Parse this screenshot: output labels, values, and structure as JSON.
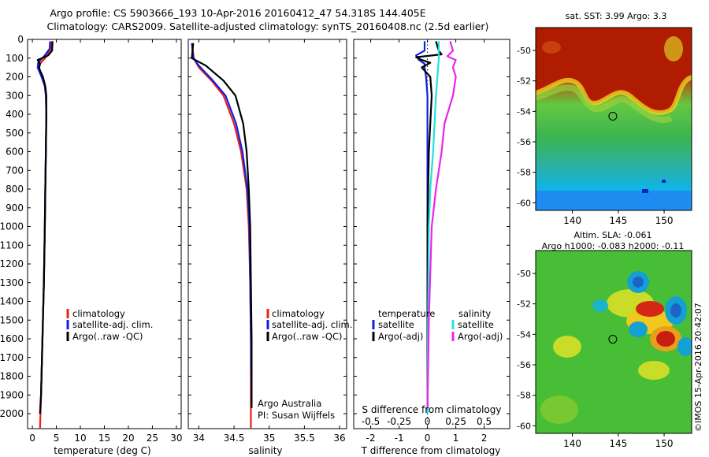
{
  "header": {
    "title_line1": "Argo profile: CS 5903666_193 10-Apr-2016 20160412_47 54.318S 144.405E",
    "title_line2": "Climatology: CARS2009. Satellite-adjusted climatology: synTS_20160408.nc (2.5d earlier)"
  },
  "colors": {
    "climatology": "#e8201e",
    "satellite_adj": "#1020e0",
    "argo": "#000000",
    "salinity_satellite": "#22e0e0",
    "salinity_argo": "#ee22ee"
  },
  "chart_data": [
    {
      "type": "line",
      "id": "temperature",
      "xlabel": "temperature (deg C)",
      "xlim": [
        -1,
        31
      ],
      "ylim": [
        2080,
        0
      ],
      "xticks": [
        0,
        5,
        10,
        15,
        20,
        25,
        30
      ],
      "xtick_labels": [
        "0",
        "5",
        "10",
        "15",
        "20",
        "25",
        "30"
      ],
      "yticks": [
        0,
        100,
        200,
        300,
        400,
        500,
        600,
        700,
        800,
        900,
        1000,
        1100,
        1200,
        1300,
        1400,
        1500,
        1600,
        1700,
        1800,
        1900,
        2000
      ],
      "ytick_labels": [
        "0",
        "100",
        "200",
        "300",
        "400",
        "500",
        "600",
        "700",
        "800",
        "900",
        "1000",
        "1100",
        "1200",
        "1300",
        "1400",
        "1500",
        "1600",
        "1700",
        "1800",
        "1900",
        "2000"
      ],
      "legend": [
        "climatology",
        "satellite-adj. clim.",
        "Argo(..raw -QC)"
      ],
      "legend_location": "lower-center",
      "series": [
        {
          "name": "climatology",
          "color_key": "climatology",
          "points": [
            [
              3.9,
              10
            ],
            [
              3.8,
              50
            ],
            [
              3.0,
              90
            ],
            [
              1.6,
              130
            ],
            [
              1.4,
              150
            ],
            [
              2.0,
              200
            ],
            [
              2.6,
              250
            ],
            [
              2.8,
              300
            ],
            [
              2.9,
              400
            ],
            [
              2.8,
              600
            ],
            [
              2.7,
              800
            ],
            [
              2.6,
              1000
            ],
            [
              2.4,
              1300
            ],
            [
              2.1,
              1600
            ],
            [
              1.8,
              1900
            ],
            [
              1.6,
              2080
            ]
          ]
        },
        {
          "name": "satellite-adj. clim.",
          "color_key": "satellite_adj",
          "points": [
            [
              3.7,
              10
            ],
            [
              3.6,
              50
            ],
            [
              2.6,
              85
            ],
            [
              1.2,
              125
            ],
            [
              1.1,
              150
            ],
            [
              1.9,
              200
            ],
            [
              2.6,
              250
            ],
            [
              2.8,
              300
            ],
            [
              2.9,
              400
            ],
            [
              2.8,
              600
            ],
            [
              2.7,
              800
            ],
            [
              2.6,
              1000
            ],
            [
              2.4,
              1300
            ],
            [
              2.1,
              1600
            ],
            [
              1.8,
              1900
            ],
            [
              1.6,
              2000
            ]
          ]
        },
        {
          "name": "Argo(..raw -QC)",
          "color_key": "argo",
          "points": [
            [
              4.2,
              10
            ],
            [
              4.1,
              60
            ],
            [
              3.3,
              85
            ],
            [
              1.1,
              110
            ],
            [
              1.6,
              130
            ],
            [
              1.4,
              155
            ],
            [
              2.2,
              200
            ],
            [
              2.7,
              250
            ],
            [
              2.9,
              300
            ],
            [
              2.9,
              400
            ],
            [
              2.8,
              600
            ],
            [
              2.7,
              800
            ],
            [
              2.6,
              1000
            ],
            [
              2.4,
              1300
            ],
            [
              2.1,
              1600
            ],
            [
              1.8,
              1900
            ],
            [
              1.6,
              2000
            ]
          ]
        }
      ]
    },
    {
      "type": "line",
      "id": "salinity",
      "xlabel": "salinity",
      "xlim": [
        33.85,
        36.1
      ],
      "ylim": [
        2080,
        0
      ],
      "xticks": [
        34,
        34.5,
        35,
        35.5,
        36
      ],
      "xtick_labels": [
        "34",
        "34.5",
        "35",
        "35.5",
        "36"
      ],
      "legend": [
        "climatology",
        "satellite-adj. clim.",
        "Argo(..raw -QC)"
      ],
      "legend_location": "lower-center",
      "annotations": [
        "Argo Australia",
        "PI: Susan Wijffels"
      ],
      "series": [
        {
          "name": "climatology",
          "color_key": "climatology",
          "points": [
            [
              33.9,
              20
            ],
            [
              33.93,
              100
            ],
            [
              34.0,
              150
            ],
            [
              34.18,
              220
            ],
            [
              34.35,
              300
            ],
            [
              34.5,
              450
            ],
            [
              34.6,
              600
            ],
            [
              34.68,
              800
            ],
            [
              34.71,
              1000
            ],
            [
              34.73,
              1300
            ],
            [
              34.74,
              1600
            ],
            [
              34.74,
              2080
            ]
          ]
        },
        {
          "name": "satellite-adj. clim.",
          "color_key": "satellite_adj",
          "points": [
            [
              33.9,
              20
            ],
            [
              33.92,
              100
            ],
            [
              34.0,
              140
            ],
            [
              34.2,
              220
            ],
            [
              34.38,
              300
            ],
            [
              34.53,
              450
            ],
            [
              34.62,
              600
            ],
            [
              34.69,
              800
            ],
            [
              34.72,
              1000
            ],
            [
              34.73,
              1300
            ],
            [
              34.74,
              1600
            ],
            [
              34.75,
              1960
            ]
          ]
        },
        {
          "name": "Argo(..raw -QC)",
          "color_key": "argo",
          "points": [
            [
              33.92,
              20
            ],
            [
              33.9,
              100
            ],
            [
              34.1,
              140
            ],
            [
              34.35,
              220
            ],
            [
              34.52,
              300
            ],
            [
              34.63,
              450
            ],
            [
              34.68,
              600
            ],
            [
              34.71,
              800
            ],
            [
              34.73,
              1000
            ],
            [
              34.74,
              1300
            ],
            [
              34.75,
              1600
            ],
            [
              34.75,
              1970
            ]
          ]
        }
      ]
    },
    {
      "type": "line",
      "id": "difference",
      "xlabel": "T difference from climatology",
      "xlabel_top": "S difference from climatology",
      "xlim": [
        -2.6,
        2.9
      ],
      "ylim": [
        2080,
        0
      ],
      "xticks": [
        -2,
        -1,
        0,
        1,
        2
      ],
      "xtick_labels": [
        "-2",
        "-1",
        "0",
        "1",
        "2"
      ],
      "sticks": [
        -2,
        -1,
        0,
        1,
        2
      ],
      "stick_labels": [
        "-0.5",
        "-0.25",
        "0",
        "0.25",
        "0.5"
      ],
      "legend_temperature": {
        "title": "temperature",
        "items": [
          "satellite",
          "Argo(-adj)"
        ]
      },
      "legend_salinity": {
        "title": "salinity",
        "items": [
          "satellite",
          "Argo(-adj)"
        ]
      },
      "series": [
        {
          "name": "T satellite",
          "color_key": "satellite_adj",
          "points": [
            [
              -0.1,
              10
            ],
            [
              -0.1,
              60
            ],
            [
              -0.4,
              85
            ],
            [
              -0.3,
              110
            ],
            [
              -0.1,
              130
            ],
            [
              -0.1,
              150
            ],
            [
              -0.05,
              200
            ],
            [
              0,
              300
            ],
            [
              0,
              600
            ],
            [
              0,
              1000
            ],
            [
              0,
              1500
            ],
            [
              0,
              2000
            ]
          ]
        },
        {
          "name": "T Argo(-adj)",
          "color_key": "argo",
          "points": [
            [
              0.3,
              10
            ],
            [
              0.4,
              60
            ],
            [
              0.5,
              80
            ],
            [
              -0.4,
              95
            ],
            [
              -0.2,
              110
            ],
            [
              0.1,
              125
            ],
            [
              -0.2,
              150
            ],
            [
              0.1,
              200
            ],
            [
              0.15,
              300
            ],
            [
              0.05,
              600
            ],
            [
              0,
              1000
            ],
            [
              0,
              1500
            ],
            [
              0,
              1970
            ]
          ]
        },
        {
          "name": "S satellite",
          "color_key": "salinity_satellite",
          "points": [
            [
              0.4,
              10
            ],
            [
              0.4,
              100
            ],
            [
              0.35,
              200
            ],
            [
              0.3,
              300
            ],
            [
              0.25,
              450
            ],
            [
              0.2,
              600
            ],
            [
              0.1,
              800
            ],
            [
              0.05,
              1000
            ],
            [
              0.02,
              1500
            ],
            [
              0,
              2000
            ]
          ]
        },
        {
          "name": "S Argo(-adj)",
          "color_key": "salinity_argo",
          "points": [
            [
              0.8,
              10
            ],
            [
              0.9,
              60
            ],
            [
              0.7,
              90
            ],
            [
              1.0,
              110
            ],
            [
              0.9,
              150
            ],
            [
              1.0,
              200
            ],
            [
              0.9,
              300
            ],
            [
              0.6,
              450
            ],
            [
              0.5,
              600
            ],
            [
              0.3,
              800
            ],
            [
              0.15,
              1000
            ],
            [
              0.05,
              1500
            ],
            [
              0,
              1970
            ]
          ]
        }
      ]
    },
    {
      "type": "heatmap",
      "id": "sst_map",
      "title": "sat. SST: 3.99 Argo: 3.3",
      "xlim": [
        136,
        153
      ],
      "ylim": [
        -60.5,
        -48.5
      ],
      "xticks": [
        140,
        145,
        150
      ],
      "xtick_labels": [
        "140",
        "145",
        "150"
      ],
      "yticks": [
        -50,
        -52,
        -54,
        -56,
        -58,
        -60
      ],
      "ytick_labels": [
        "-50",
        "-52",
        "-54",
        "-56",
        "-58",
        "-60"
      ],
      "marker": {
        "lon": 144.405,
        "lat": -54.318
      }
    },
    {
      "type": "heatmap",
      "id": "sla_map",
      "title_line1": "Altim. SLA: -0.061",
      "title_line2": "Argo h1000: -0.083 h2000: -0.11",
      "xlim": [
        136,
        153
      ],
      "ylim": [
        -60.5,
        -48.5
      ],
      "xticks": [
        140,
        145,
        150
      ],
      "xtick_labels": [
        "140",
        "145",
        "150"
      ],
      "yticks": [
        -50,
        -52,
        -54,
        -56,
        -58,
        -60
      ],
      "ytick_labels": [
        "-50",
        "-52",
        "-54",
        "-56",
        "-58",
        "-60"
      ],
      "marker": {
        "lon": 144.405,
        "lat": -54.318
      }
    }
  ],
  "footer": {
    "credit": "©IMOS 15-Apr-2016 20:42:07"
  }
}
